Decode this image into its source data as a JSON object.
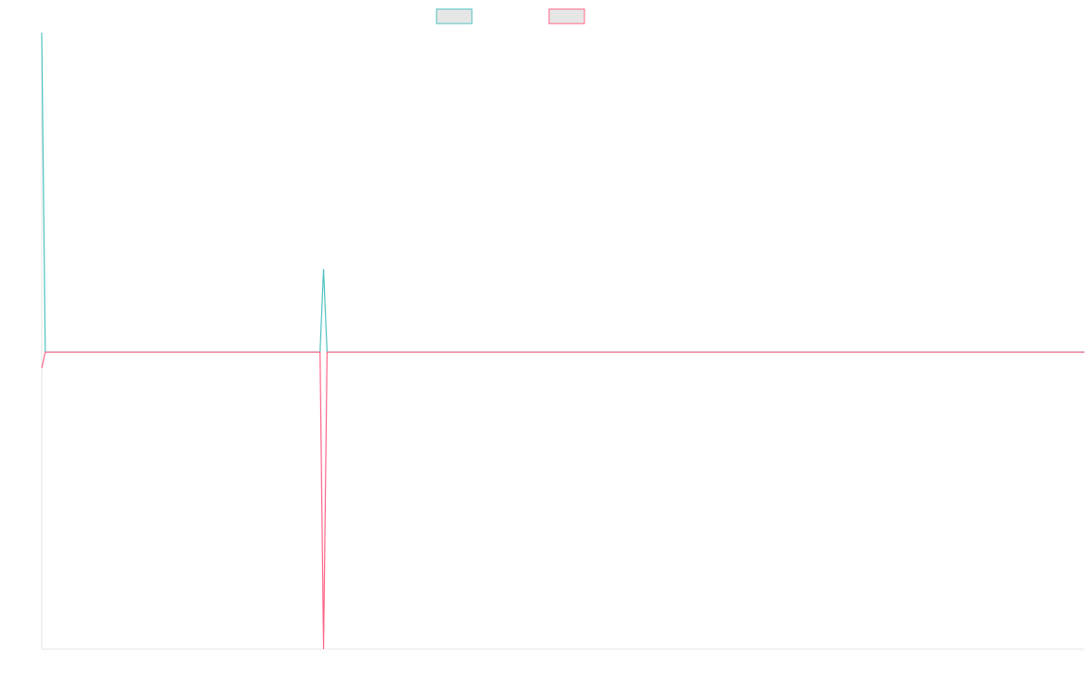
{
  "chart_data": {
    "type": "line",
    "x": [
      0,
      1,
      79,
      80,
      81,
      296
    ],
    "xlim": [
      0,
      296
    ],
    "ylim": [
      -0.93,
      1
    ],
    "series": [
      {
        "color": "#4bc0c0",
        "values": [
          1,
          0,
          0,
          0.26,
          0,
          0
        ]
      },
      {
        "color": "#ff6384",
        "values": [
          -0.05,
          0,
          0,
          -0.93,
          0,
          0
        ]
      }
    ]
  }
}
